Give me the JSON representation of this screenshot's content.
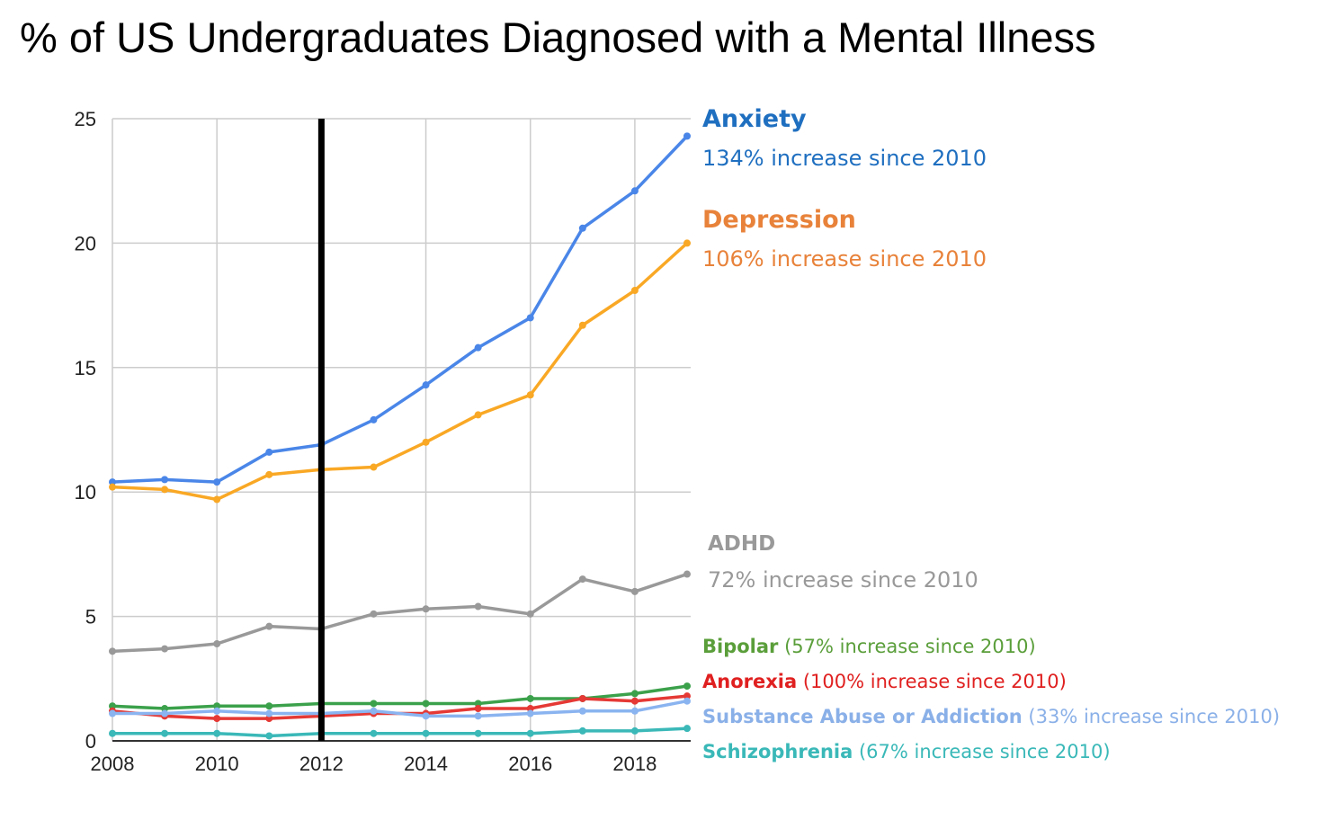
{
  "chart_data": {
    "type": "line",
    "title": "% of US Undergraduates Diagnosed with a Mental Illness",
    "xlabel": "",
    "ylabel": "",
    "x": [
      2008,
      2009,
      2010,
      2011,
      2012,
      2013,
      2014,
      2015,
      2016,
      2017,
      2018,
      2019
    ],
    "x_ticks": [
      "2008",
      "2010",
      "2012",
      "2014",
      "2016",
      "2018"
    ],
    "y_ticks": [
      "0",
      "5",
      "10",
      "15",
      "20",
      "25"
    ],
    "xlim": [
      2008,
      2019
    ],
    "ylim": [
      0,
      25
    ],
    "grid": true,
    "legend": "none",
    "marker_line_x": 2012,
    "series": [
      {
        "name": "Anxiety",
        "note": "134% increase since 2010",
        "color": "#4a86e8",
        "label_color": "#1f6fc0",
        "values": [
          10.4,
          10.5,
          10.4,
          11.6,
          11.9,
          12.9,
          14.3,
          15.8,
          17.0,
          20.6,
          22.1,
          24.3
        ]
      },
      {
        "name": "Depression",
        "note": "106% increase since 2010",
        "color": "#f9a825",
        "label_color": "#e8823a",
        "values": [
          10.2,
          10.1,
          9.7,
          10.7,
          10.9,
          11.0,
          12.0,
          13.1,
          13.9,
          16.7,
          18.1,
          20.0
        ]
      },
      {
        "name": "ADHD",
        "note": "72% increase since 2010",
        "color": "#999999",
        "label_color": "#999999",
        "values": [
          3.6,
          3.7,
          3.9,
          4.6,
          4.5,
          5.1,
          5.3,
          5.4,
          5.1,
          6.5,
          6.0,
          6.7
        ]
      },
      {
        "name": "Bipolar",
        "note": "(57% increase since 2010)",
        "color": "#3ba14b",
        "label_color": "#5a9e3a",
        "values": [
          1.4,
          1.3,
          1.4,
          1.4,
          1.5,
          1.5,
          1.5,
          1.5,
          1.7,
          1.7,
          1.9,
          2.2
        ]
      },
      {
        "name": "Anorexia",
        "note": "(100% increase since 2010)",
        "color": "#e53935",
        "label_color": "#e02020",
        "values": [
          1.2,
          1.0,
          0.9,
          0.9,
          1.0,
          1.1,
          1.1,
          1.3,
          1.3,
          1.7,
          1.6,
          1.8
        ]
      },
      {
        "name": "Substance Abuse or Addiction",
        "note": "(33% increase since 2010)",
        "color": "#8ab4f0",
        "label_color": "#8ab0e8",
        "values": [
          1.1,
          1.1,
          1.2,
          1.1,
          1.1,
          1.2,
          1.0,
          1.0,
          1.1,
          1.2,
          1.2,
          1.6
        ]
      },
      {
        "name": "Schizophrenia",
        "note": "(67% increase since 2010)",
        "color": "#3bb8b8",
        "label_color": "#3ab8b8",
        "values": [
          0.3,
          0.3,
          0.3,
          0.2,
          0.3,
          0.3,
          0.3,
          0.3,
          0.3,
          0.4,
          0.4,
          0.5
        ]
      }
    ]
  }
}
